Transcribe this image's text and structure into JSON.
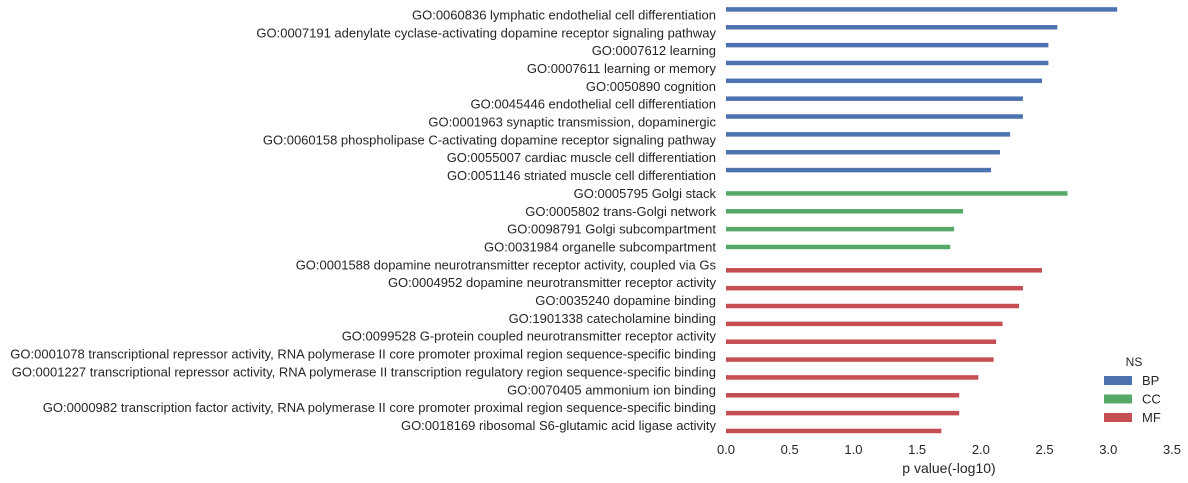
{
  "chart_data": {
    "type": "bar",
    "orientation": "horizontal",
    "xlabel": "p value(-log10)",
    "xlim": [
      0,
      3.5
    ],
    "xticks": [
      "0.0",
      "0.5",
      "1.0",
      "1.5",
      "2.0",
      "2.5",
      "3.0",
      "3.5"
    ],
    "grid": false,
    "legend": {
      "title": "NS",
      "placement": "bottom-right",
      "entries": [
        {
          "name": "BP",
          "color": "#4c72b0"
        },
        {
          "name": "CC",
          "color": "#55a868"
        },
        {
          "name": "MF",
          "color": "#c44e52"
        }
      ]
    },
    "categories": [
      {
        "label": "GO:0060836 lymphatic endothelial cell differentiation",
        "value": 3.07,
        "ns": "BP"
      },
      {
        "label": "GO:0007191 adenylate cyclase-activating dopamine receptor signaling pathway",
        "value": 2.6,
        "ns": "BP"
      },
      {
        "label": "GO:0007612 learning",
        "value": 2.53,
        "ns": "BP"
      },
      {
        "label": "GO:0007611 learning or memory",
        "value": 2.53,
        "ns": "BP"
      },
      {
        "label": "GO:0050890 cognition",
        "value": 2.48,
        "ns": "BP"
      },
      {
        "label": "GO:0045446 endothelial cell differentiation",
        "value": 2.33,
        "ns": "BP"
      },
      {
        "label": "GO:0001963 synaptic transmission, dopaminergic",
        "value": 2.33,
        "ns": "BP"
      },
      {
        "label": "GO:0060158 phospholipase C-activating dopamine receptor signaling pathway",
        "value": 2.23,
        "ns": "BP"
      },
      {
        "label": "GO:0055007 cardiac muscle cell differentiation",
        "value": 2.15,
        "ns": "BP"
      },
      {
        "label": "GO:0051146 striated muscle cell differentiation",
        "value": 2.08,
        "ns": "BP"
      },
      {
        "label": "GO:0005795 Golgi stack",
        "value": 2.68,
        "ns": "CC"
      },
      {
        "label": "GO:0005802 trans-Golgi network",
        "value": 1.86,
        "ns": "CC"
      },
      {
        "label": "GO:0098791 Golgi subcompartment",
        "value": 1.79,
        "ns": "CC"
      },
      {
        "label": "GO:0031984 organelle subcompartment",
        "value": 1.76,
        "ns": "CC"
      },
      {
        "label": "GO:0001588 dopamine neurotransmitter receptor activity, coupled via Gs",
        "value": 2.48,
        "ns": "MF"
      },
      {
        "label": "GO:0004952 dopamine neurotransmitter receptor activity",
        "value": 2.33,
        "ns": "MF"
      },
      {
        "label": "GO:0035240 dopamine binding",
        "value": 2.3,
        "ns": "MF"
      },
      {
        "label": "GO:1901338 catecholamine binding",
        "value": 2.17,
        "ns": "MF"
      },
      {
        "label": "GO:0099528 G-protein coupled neurotransmitter receptor activity",
        "value": 2.12,
        "ns": "MF"
      },
      {
        "label": "GO:0001078 transcriptional repressor activity, RNA polymerase II core promoter proximal region sequence-specific binding",
        "value": 2.1,
        "ns": "MF"
      },
      {
        "label": "GO:0001227 transcriptional repressor activity, RNA polymerase II transcription regulatory region sequence-specific binding",
        "value": 1.98,
        "ns": "MF"
      },
      {
        "label": "GO:0070405 ammonium ion binding",
        "value": 1.83,
        "ns": "MF"
      },
      {
        "label": "GO:0000982 transcription factor activity, RNA polymerase II core promoter proximal region sequence-specific binding",
        "value": 1.83,
        "ns": "MF"
      },
      {
        "label": "GO:0018169 ribosomal S6-glutamic acid ligase activity",
        "value": 1.69,
        "ns": "MF"
      }
    ]
  }
}
